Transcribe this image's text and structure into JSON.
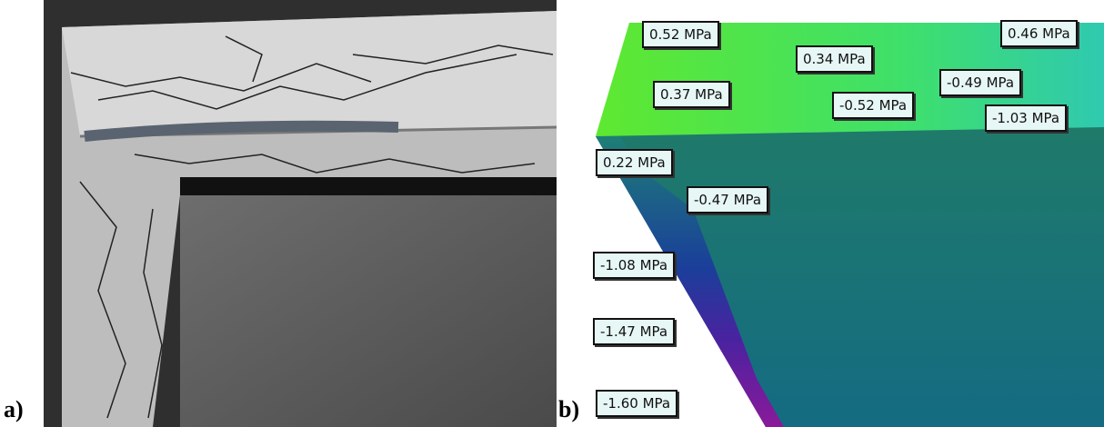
{
  "panels": [
    {
      "label": "a)"
    },
    {
      "label": "b)",
      "stress_labels": [
        "0.52 MPa",
        "0.46 MPa",
        "0.34 MPa",
        "-0.49 MPa",
        "0.37 MPa",
        "-0.52 MPa",
        "-1.03 MPa",
        "0.22 MPa",
        "-0.47 MPa",
        "-1.08 MPa",
        "-1.47 MPa",
        "-1.60 MPa"
      ]
    }
  ]
}
